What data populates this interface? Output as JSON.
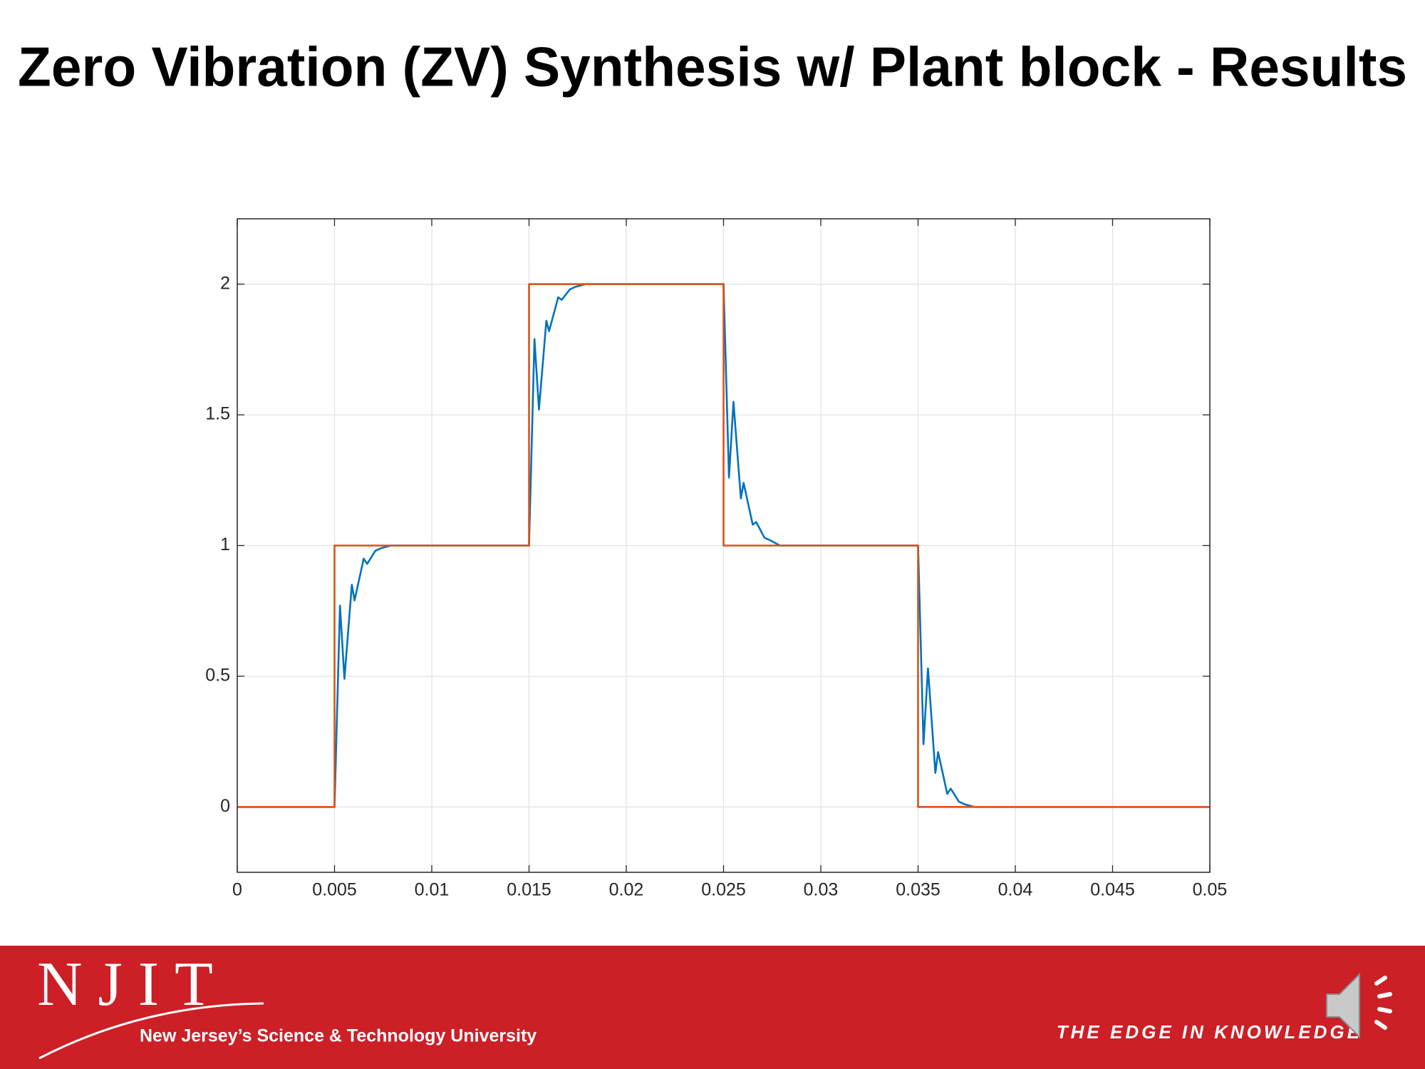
{
  "chart_data": {
    "type": "line",
    "title": "Zero Vibration (ZV) Synthesis w/ Plant block - Results",
    "xlim": [
      0,
      0.05
    ],
    "xticks": [
      0,
      0.005,
      0.01,
      0.015,
      0.02,
      0.025,
      0.03,
      0.035,
      0.04,
      0.045,
      0.05
    ],
    "ylim": [
      -0.25,
      2.25
    ],
    "yticks": [
      0,
      0.5,
      1,
      1.5,
      2
    ],
    "grid": true,
    "series": [
      {
        "color": "#0072bd",
        "x": [
          0,
          0.005,
          0.00528,
          0.00551,
          0.00589,
          0.00603,
          0.0065,
          0.00668,
          0.0071,
          0.0074,
          0.0079,
          0.015,
          0.01528,
          0.01551,
          0.01589,
          0.01603,
          0.0165,
          0.01668,
          0.0171,
          0.0174,
          0.0179,
          0.025,
          0.02528,
          0.02551,
          0.02589,
          0.02603,
          0.0265,
          0.02668,
          0.0271,
          0.0274,
          0.0279,
          0.035,
          0.03528,
          0.03551,
          0.03589,
          0.03603,
          0.0365,
          0.03668,
          0.0371,
          0.0374,
          0.0379,
          0.05
        ],
        "values": [
          0,
          0,
          0.77,
          0.49,
          0.85,
          0.79,
          0.95,
          0.93,
          0.98,
          0.99,
          1,
          1,
          1.79,
          1.52,
          1.86,
          1.82,
          1.95,
          1.94,
          1.98,
          1.99,
          2,
          2,
          1.26,
          1.55,
          1.18,
          1.24,
          1.08,
          1.09,
          1.03,
          1.02,
          1,
          1,
          0.24,
          0.53,
          0.13,
          0.21,
          0.05,
          0.07,
          0.02,
          0.01,
          0,
          0
        ]
      },
      {
        "color": "#d95319",
        "x": [
          0,
          0.005,
          0.005,
          0.015,
          0.015,
          0.025,
          0.025,
          0.035,
          0.035,
          0.05
        ],
        "values": [
          0,
          0,
          1,
          1,
          2,
          2,
          1,
          1,
          0,
          0
        ]
      }
    ]
  },
  "footer": {
    "logo": "NJIT",
    "tagline": "New Jersey’s Science & Technology University",
    "slogan": "THE EDGE IN KNOWLEDGE"
  }
}
